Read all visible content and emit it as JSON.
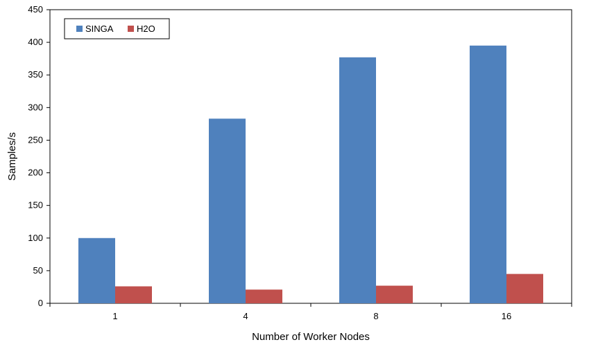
{
  "chart_data": {
    "type": "bar",
    "categories": [
      "1",
      "4",
      "8",
      "16"
    ],
    "series": [
      {
        "name": "SINGA",
        "values": [
          100,
          283,
          377,
          395
        ],
        "color": "#4F81BD"
      },
      {
        "name": "H2O",
        "values": [
          26,
          21,
          27,
          45
        ],
        "color": "#C0504D"
      }
    ],
    "xlabel": "Number of Worker Nodes",
    "ylabel": "Samples/s",
    "ylim": [
      0,
      450
    ],
    "yticks": [
      0,
      50,
      100,
      150,
      200,
      250,
      300,
      350,
      400,
      450
    ],
    "grid": false,
    "legend_position": "top-left"
  }
}
